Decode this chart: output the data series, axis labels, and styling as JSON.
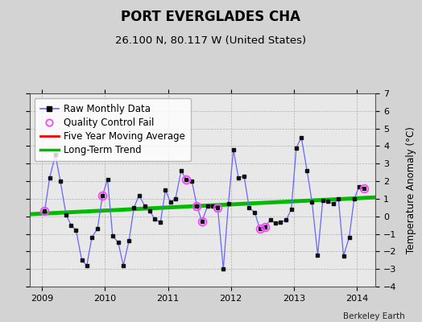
{
  "title": "PORT EVERGLADES CHA",
  "subtitle": "26.100 N, 80.117 W (United States)",
  "ylabel": "Temperature Anomaly (°C)",
  "attribution": "Berkeley Earth",
  "background_color": "#d3d3d3",
  "plot_bg_color": "#e8e8e8",
  "ylim": [
    -4,
    7
  ],
  "yticks": [
    -4,
    -3,
    -2,
    -1,
    0,
    1,
    2,
    3,
    4,
    5,
    6,
    7
  ],
  "xlim": [
    2008.8,
    2014.3
  ],
  "xticks": [
    2009,
    2010,
    2011,
    2012,
    2013,
    2014
  ],
  "raw_x": [
    2009.04,
    2009.12,
    2009.21,
    2009.29,
    2009.38,
    2009.46,
    2009.54,
    2009.63,
    2009.71,
    2009.79,
    2009.88,
    2009.96,
    2010.04,
    2010.12,
    2010.21,
    2010.29,
    2010.38,
    2010.46,
    2010.54,
    2010.63,
    2010.71,
    2010.79,
    2010.88,
    2010.96,
    2011.04,
    2011.12,
    2011.21,
    2011.29,
    2011.38,
    2011.46,
    2011.54,
    2011.63,
    2011.71,
    2011.79,
    2011.88,
    2011.96,
    2012.04,
    2012.12,
    2012.21,
    2012.29,
    2012.38,
    2012.46,
    2012.54,
    2012.63,
    2012.71,
    2012.79,
    2012.88,
    2012.96,
    2013.04,
    2013.12,
    2013.21,
    2013.29,
    2013.38,
    2013.46,
    2013.54,
    2013.63,
    2013.71,
    2013.79,
    2013.88,
    2013.96,
    2014.04,
    2014.12
  ],
  "raw_y": [
    0.3,
    2.2,
    3.5,
    2.0,
    0.1,
    -0.5,
    -0.8,
    -2.5,
    -2.8,
    -1.2,
    -0.7,
    1.2,
    2.1,
    -1.1,
    -1.5,
    -2.8,
    -1.4,
    0.5,
    1.2,
    0.6,
    0.3,
    -0.15,
    -0.35,
    1.5,
    0.8,
    1.0,
    2.6,
    2.1,
    2.0,
    0.6,
    -0.3,
    0.6,
    0.6,
    0.5,
    -3.0,
    0.7,
    3.8,
    2.2,
    2.3,
    0.5,
    0.2,
    -0.7,
    -0.6,
    -0.2,
    -0.4,
    -0.35,
    -0.2,
    0.4,
    3.9,
    4.5,
    2.6,
    0.8,
    -2.2,
    0.9,
    0.85,
    0.7,
    1.0,
    -2.25,
    -1.2,
    1.0,
    1.7,
    1.6
  ],
  "qc_fail_x": [
    2009.04,
    2009.96,
    2011.29,
    2011.46,
    2011.54,
    2011.79,
    2012.46,
    2012.54,
    2014.12
  ],
  "qc_fail_y": [
    0.3,
    1.2,
    2.1,
    0.6,
    -0.3,
    0.5,
    -0.7,
    -0.6,
    1.6
  ],
  "trend_x": [
    2008.8,
    2014.3
  ],
  "trend_y": [
    0.12,
    1.08
  ],
  "raw_line_color": "#6666ff",
  "raw_marker_color": "#111111",
  "qc_color": "#ff44ff",
  "trend_color": "#00bb00",
  "mavg_color": "#ee0000",
  "legend_fontsize": 8.5,
  "title_fontsize": 12,
  "subtitle_fontsize": 9.5
}
